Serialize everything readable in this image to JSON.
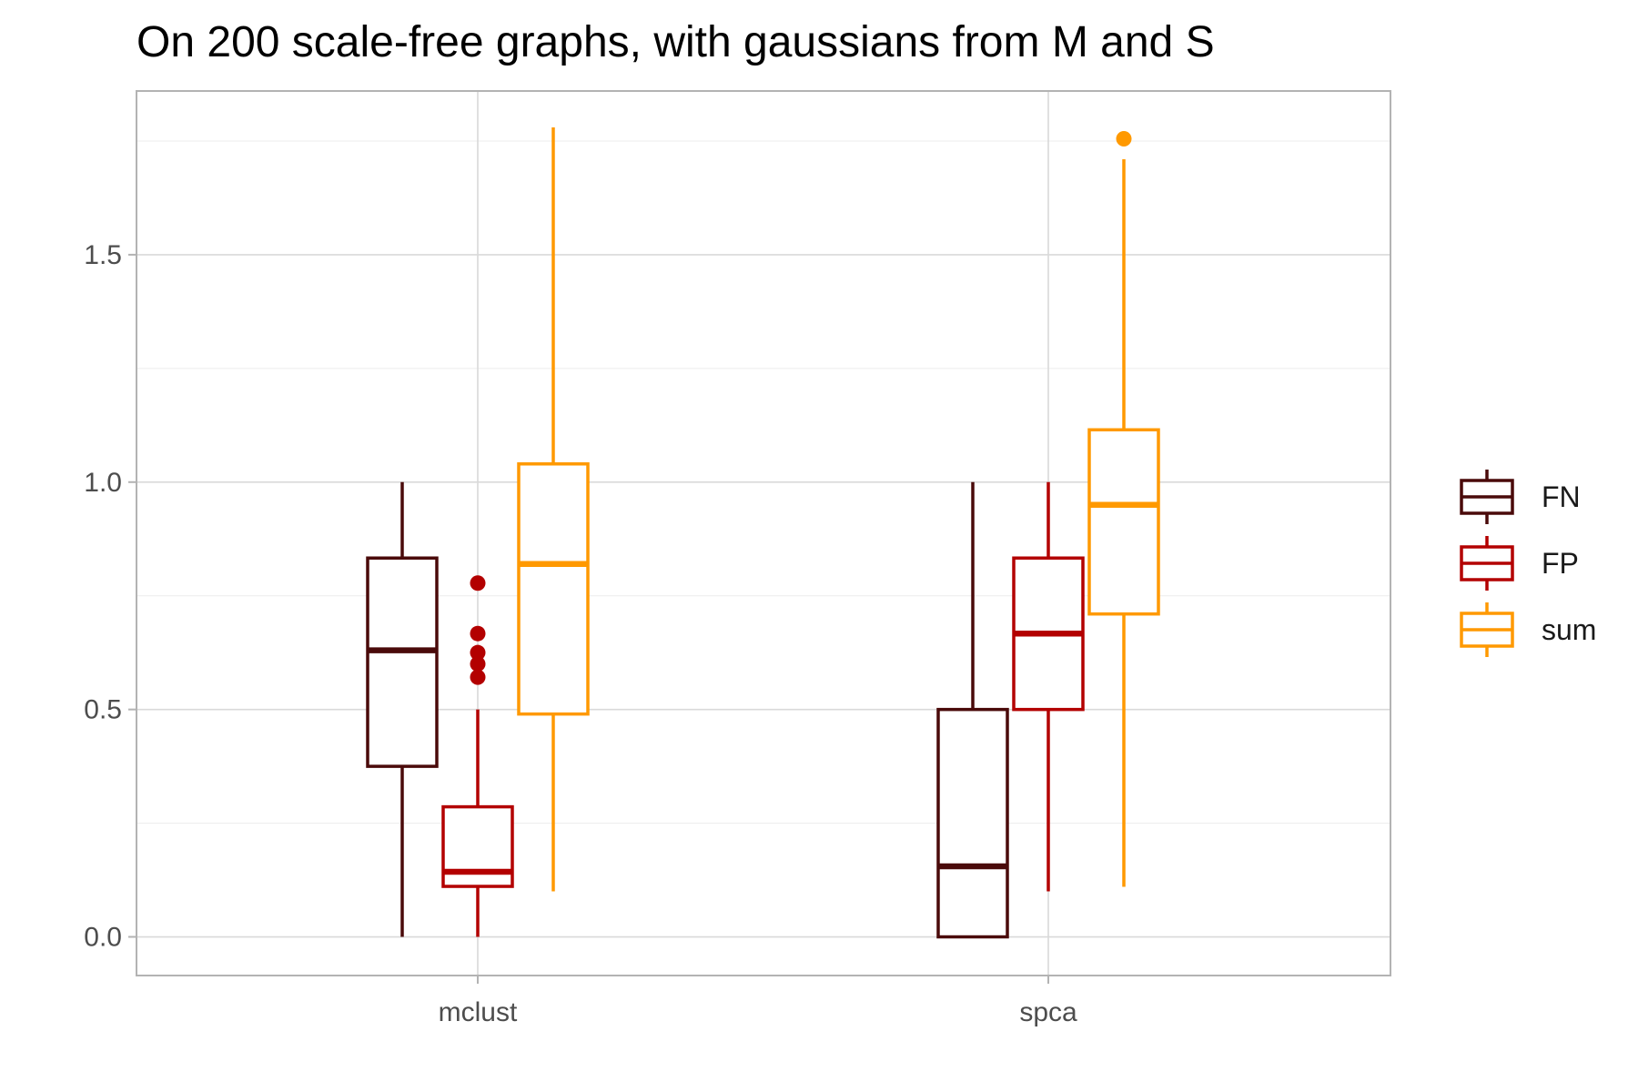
{
  "chart_data": {
    "type": "boxplot",
    "title": "On 200 scale-free graphs, with gaussians from M and S",
    "xlabel": "",
    "ylabel": "",
    "categories": [
      "mclust",
      "spca"
    ],
    "ylim": [
      -0.085,
      1.86
    ],
    "yticks": [
      0.0,
      0.5,
      1.0,
      1.5
    ],
    "ytick_labels": [
      "0.0",
      "0.5",
      "1.0",
      "1.5"
    ],
    "grid": true,
    "legend_position": "right",
    "series": [
      {
        "name": "FN",
        "color": "#4a0a0a",
        "boxes": [
          {
            "category": "mclust",
            "whisker_low": 0.0,
            "q1": 0.375,
            "median": 0.63,
            "q3": 0.833,
            "whisker_high": 1.0,
            "outliers": []
          },
          {
            "category": "spca",
            "whisker_low": 0.0,
            "q1": 0.0,
            "median": 0.155,
            "q3": 0.5,
            "whisker_high": 1.0,
            "outliers": []
          }
        ]
      },
      {
        "name": "FP",
        "color": "#b30000",
        "boxes": [
          {
            "category": "mclust",
            "whisker_low": 0.0,
            "q1": 0.111,
            "median": 0.143,
            "q3": 0.286,
            "whisker_high": 0.5,
            "outliers": [
              0.571,
              0.6,
              0.625,
              0.667,
              0.778
            ]
          },
          {
            "category": "spca",
            "whisker_low": 0.1,
            "q1": 0.5,
            "median": 0.667,
            "q3": 0.833,
            "whisker_high": 1.0,
            "outliers": []
          }
        ]
      },
      {
        "name": "sum",
        "color": "#ff9900",
        "boxes": [
          {
            "category": "mclust",
            "whisker_low": 0.1,
            "q1": 0.49,
            "median": 0.82,
            "q3": 1.04,
            "whisker_high": 1.78,
            "outliers": []
          },
          {
            "category": "spca",
            "whisker_low": 0.11,
            "q1": 0.71,
            "median": 0.95,
            "q3": 1.115,
            "whisker_high": 1.71,
            "outliers": [
              1.755
            ]
          }
        ]
      }
    ]
  }
}
